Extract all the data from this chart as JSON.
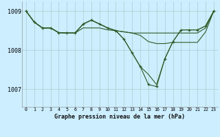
{
  "title": "Graphe pression niveau de la mer (hPa)",
  "bg_color": "#cceeff",
  "grid_color": "#aacccc",
  "line_color": "#2d5a27",
  "xlim": [
    -0.5,
    23.5
  ],
  "ylim": [
    1006.55,
    1009.25
  ],
  "yticks": [
    1007,
    1008,
    1009
  ],
  "xticks": [
    0,
    1,
    2,
    3,
    4,
    5,
    6,
    7,
    8,
    9,
    10,
    11,
    12,
    13,
    14,
    15,
    16,
    17,
    18,
    19,
    20,
    21,
    22,
    23
  ],
  "line1": [
    1009.0,
    1008.72,
    1008.57,
    1008.57,
    1008.45,
    1008.44,
    1008.44,
    1008.57,
    1008.57,
    1008.57,
    1008.52,
    1008.5,
    1008.47,
    1008.44,
    1008.44,
    1008.44,
    1008.44,
    1008.44,
    1008.44,
    1008.44,
    1008.44,
    1008.44,
    1008.57,
    1009.0
  ],
  "line2": [
    1009.0,
    1008.72,
    1008.57,
    1008.57,
    1008.45,
    1008.44,
    1008.44,
    1008.67,
    1008.77,
    1008.67,
    1008.57,
    1008.5,
    1008.47,
    1008.44,
    1008.38,
    1008.22,
    1008.17,
    1008.17,
    1008.2,
    1008.2,
    1008.2,
    1008.2,
    1008.47,
    1009.0
  ],
  "line3": [
    1009.0,
    1008.72,
    1008.57,
    1008.57,
    1008.45,
    1008.44,
    1008.44,
    1008.67,
    1008.77,
    1008.67,
    1008.57,
    1008.5,
    1008.28,
    1007.93,
    1007.58,
    1007.38,
    1007.12,
    1007.78,
    1008.22,
    1008.52,
    1008.52,
    1008.52,
    1008.62,
    1009.0
  ],
  "main": [
    1009.0,
    1008.72,
    1008.57,
    1008.57,
    1008.45,
    1008.44,
    1008.44,
    1008.67,
    1008.77,
    1008.67,
    1008.57,
    1008.5,
    1008.28,
    1007.93,
    1007.58,
    1007.12,
    1007.07,
    1007.78,
    1008.22,
    1008.52,
    1008.52,
    1008.52,
    1008.62,
    1009.0
  ]
}
